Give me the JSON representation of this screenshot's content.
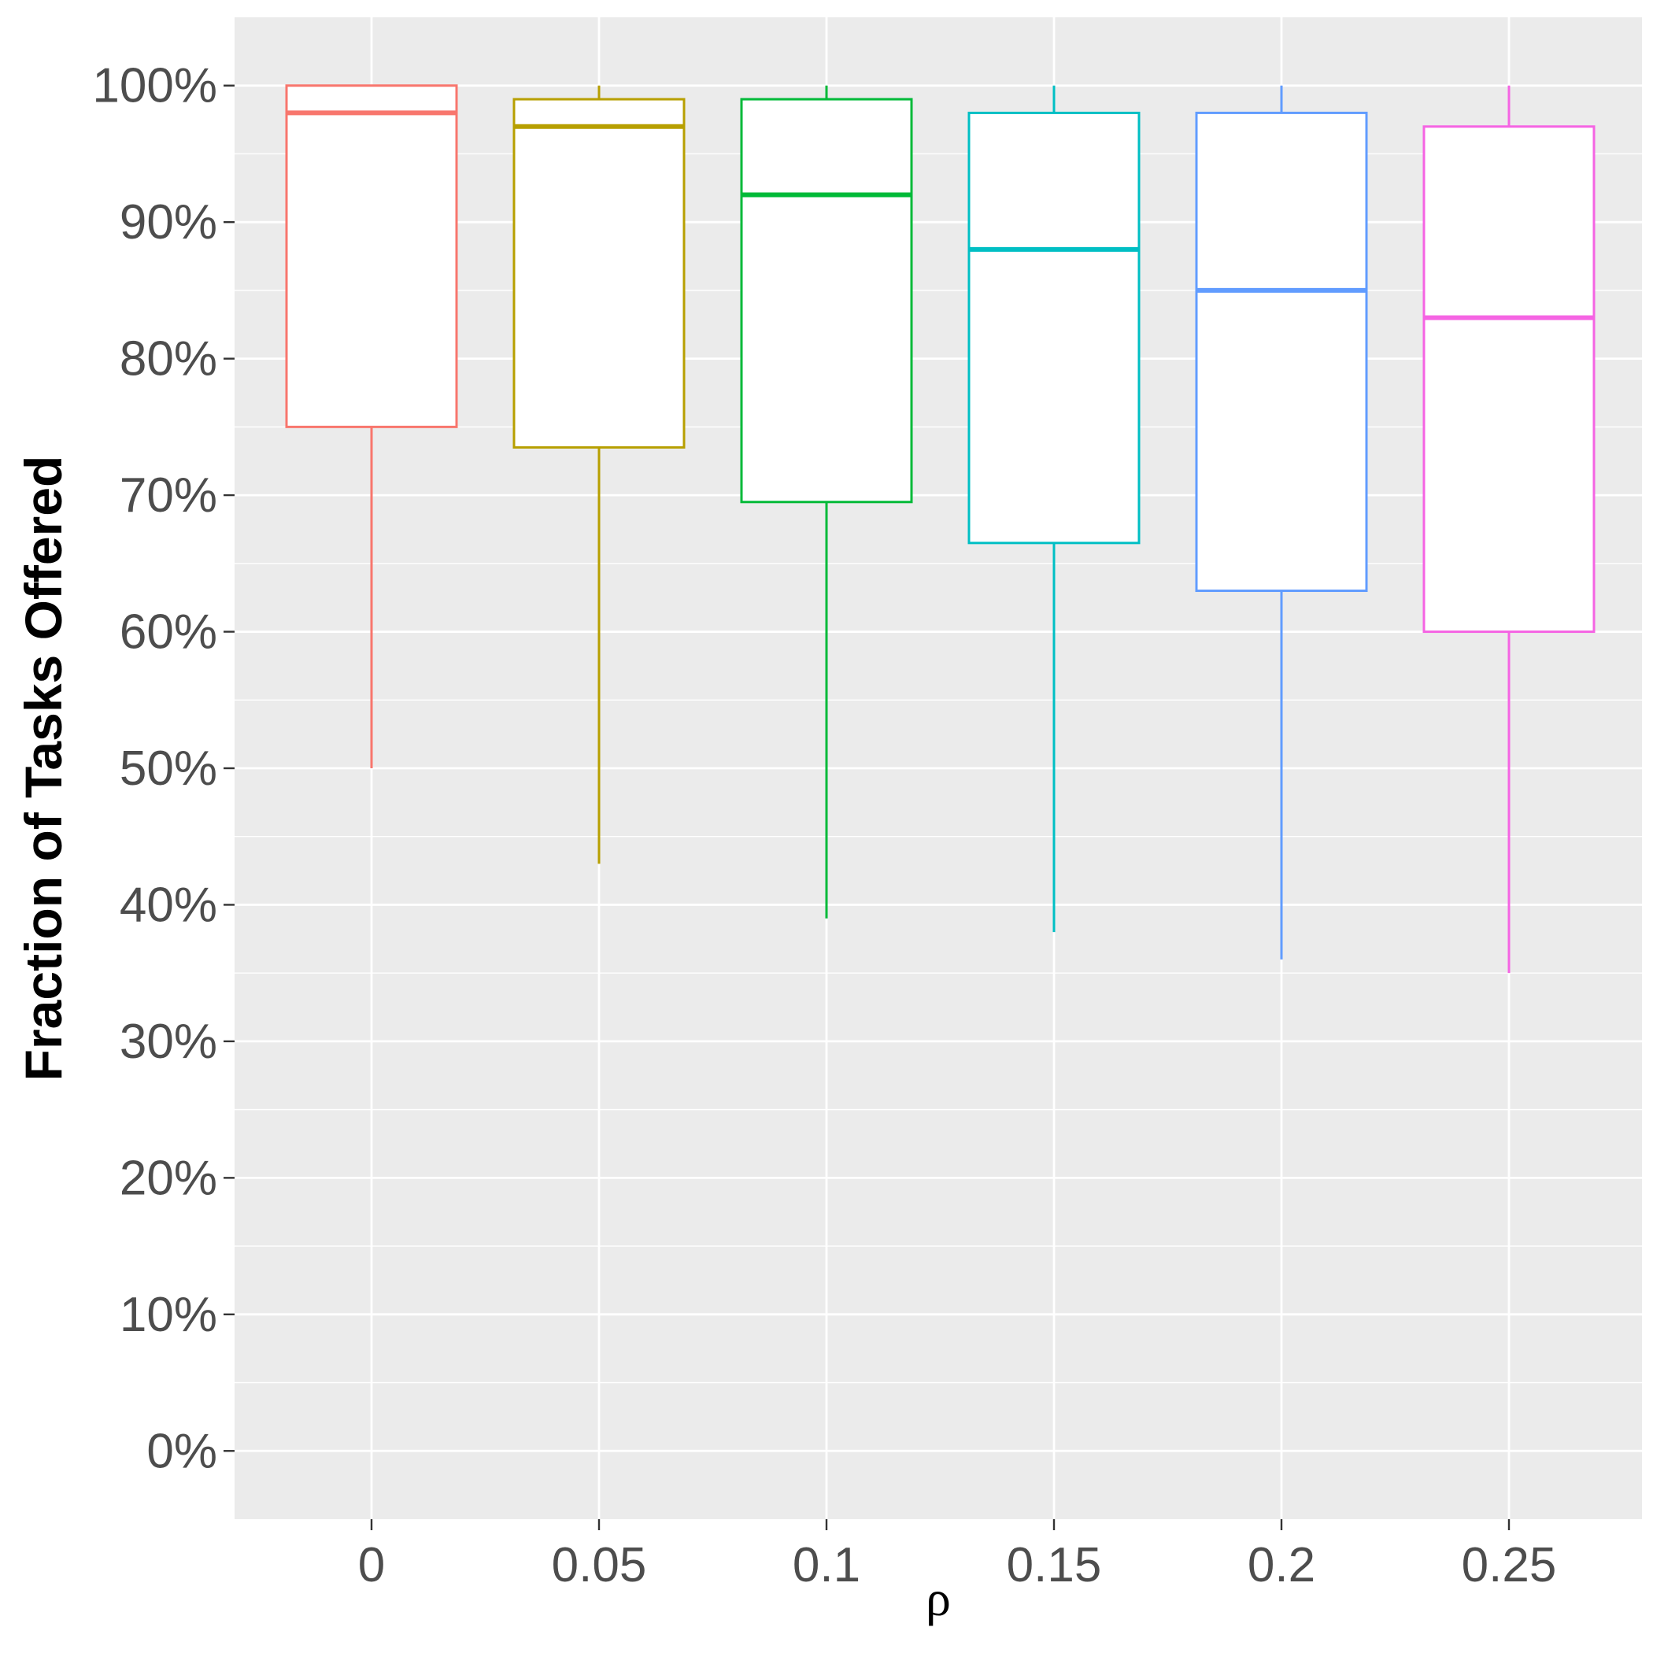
{
  "chart_data": {
    "type": "boxplot",
    "title": "",
    "xlabel": "ρ",
    "ylabel": "Fraction of Tasks Offered",
    "ylim": [
      -5,
      105
    ],
    "yticks": [
      0,
      10,
      20,
      30,
      40,
      50,
      60,
      70,
      80,
      90,
      100
    ],
    "ytick_labels": [
      "0%",
      "10%",
      "20%",
      "30%",
      "40%",
      "50%",
      "60%",
      "70%",
      "80%",
      "90%",
      "100%"
    ],
    "categories": [
      "0",
      "0.05",
      "0.1",
      "0.15",
      "0.2",
      "0.25"
    ],
    "grid": true,
    "legend": "none",
    "series": [
      {
        "name": "0",
        "color": "#F8766D",
        "min": 50,
        "q1": 75,
        "median": 98,
        "q3": 100,
        "max": 100
      },
      {
        "name": "0.05",
        "color": "#B79F00",
        "min": 43,
        "q1": 73.5,
        "median": 97,
        "q3": 99,
        "max": 100
      },
      {
        "name": "0.1",
        "color": "#00BA38",
        "min": 39,
        "q1": 69.5,
        "median": 92,
        "q3": 99,
        "max": 100
      },
      {
        "name": "0.15",
        "color": "#00BFC4",
        "min": 38,
        "q1": 66.5,
        "median": 88,
        "q3": 98,
        "max": 100
      },
      {
        "name": "0.2",
        "color": "#619CFF",
        "min": 36,
        "q1": 63,
        "median": 85,
        "q3": 98,
        "max": 100
      },
      {
        "name": "0.25",
        "color": "#F564E3",
        "min": 35,
        "q1": 60,
        "median": 83,
        "q3": 97,
        "max": 100
      }
    ]
  }
}
